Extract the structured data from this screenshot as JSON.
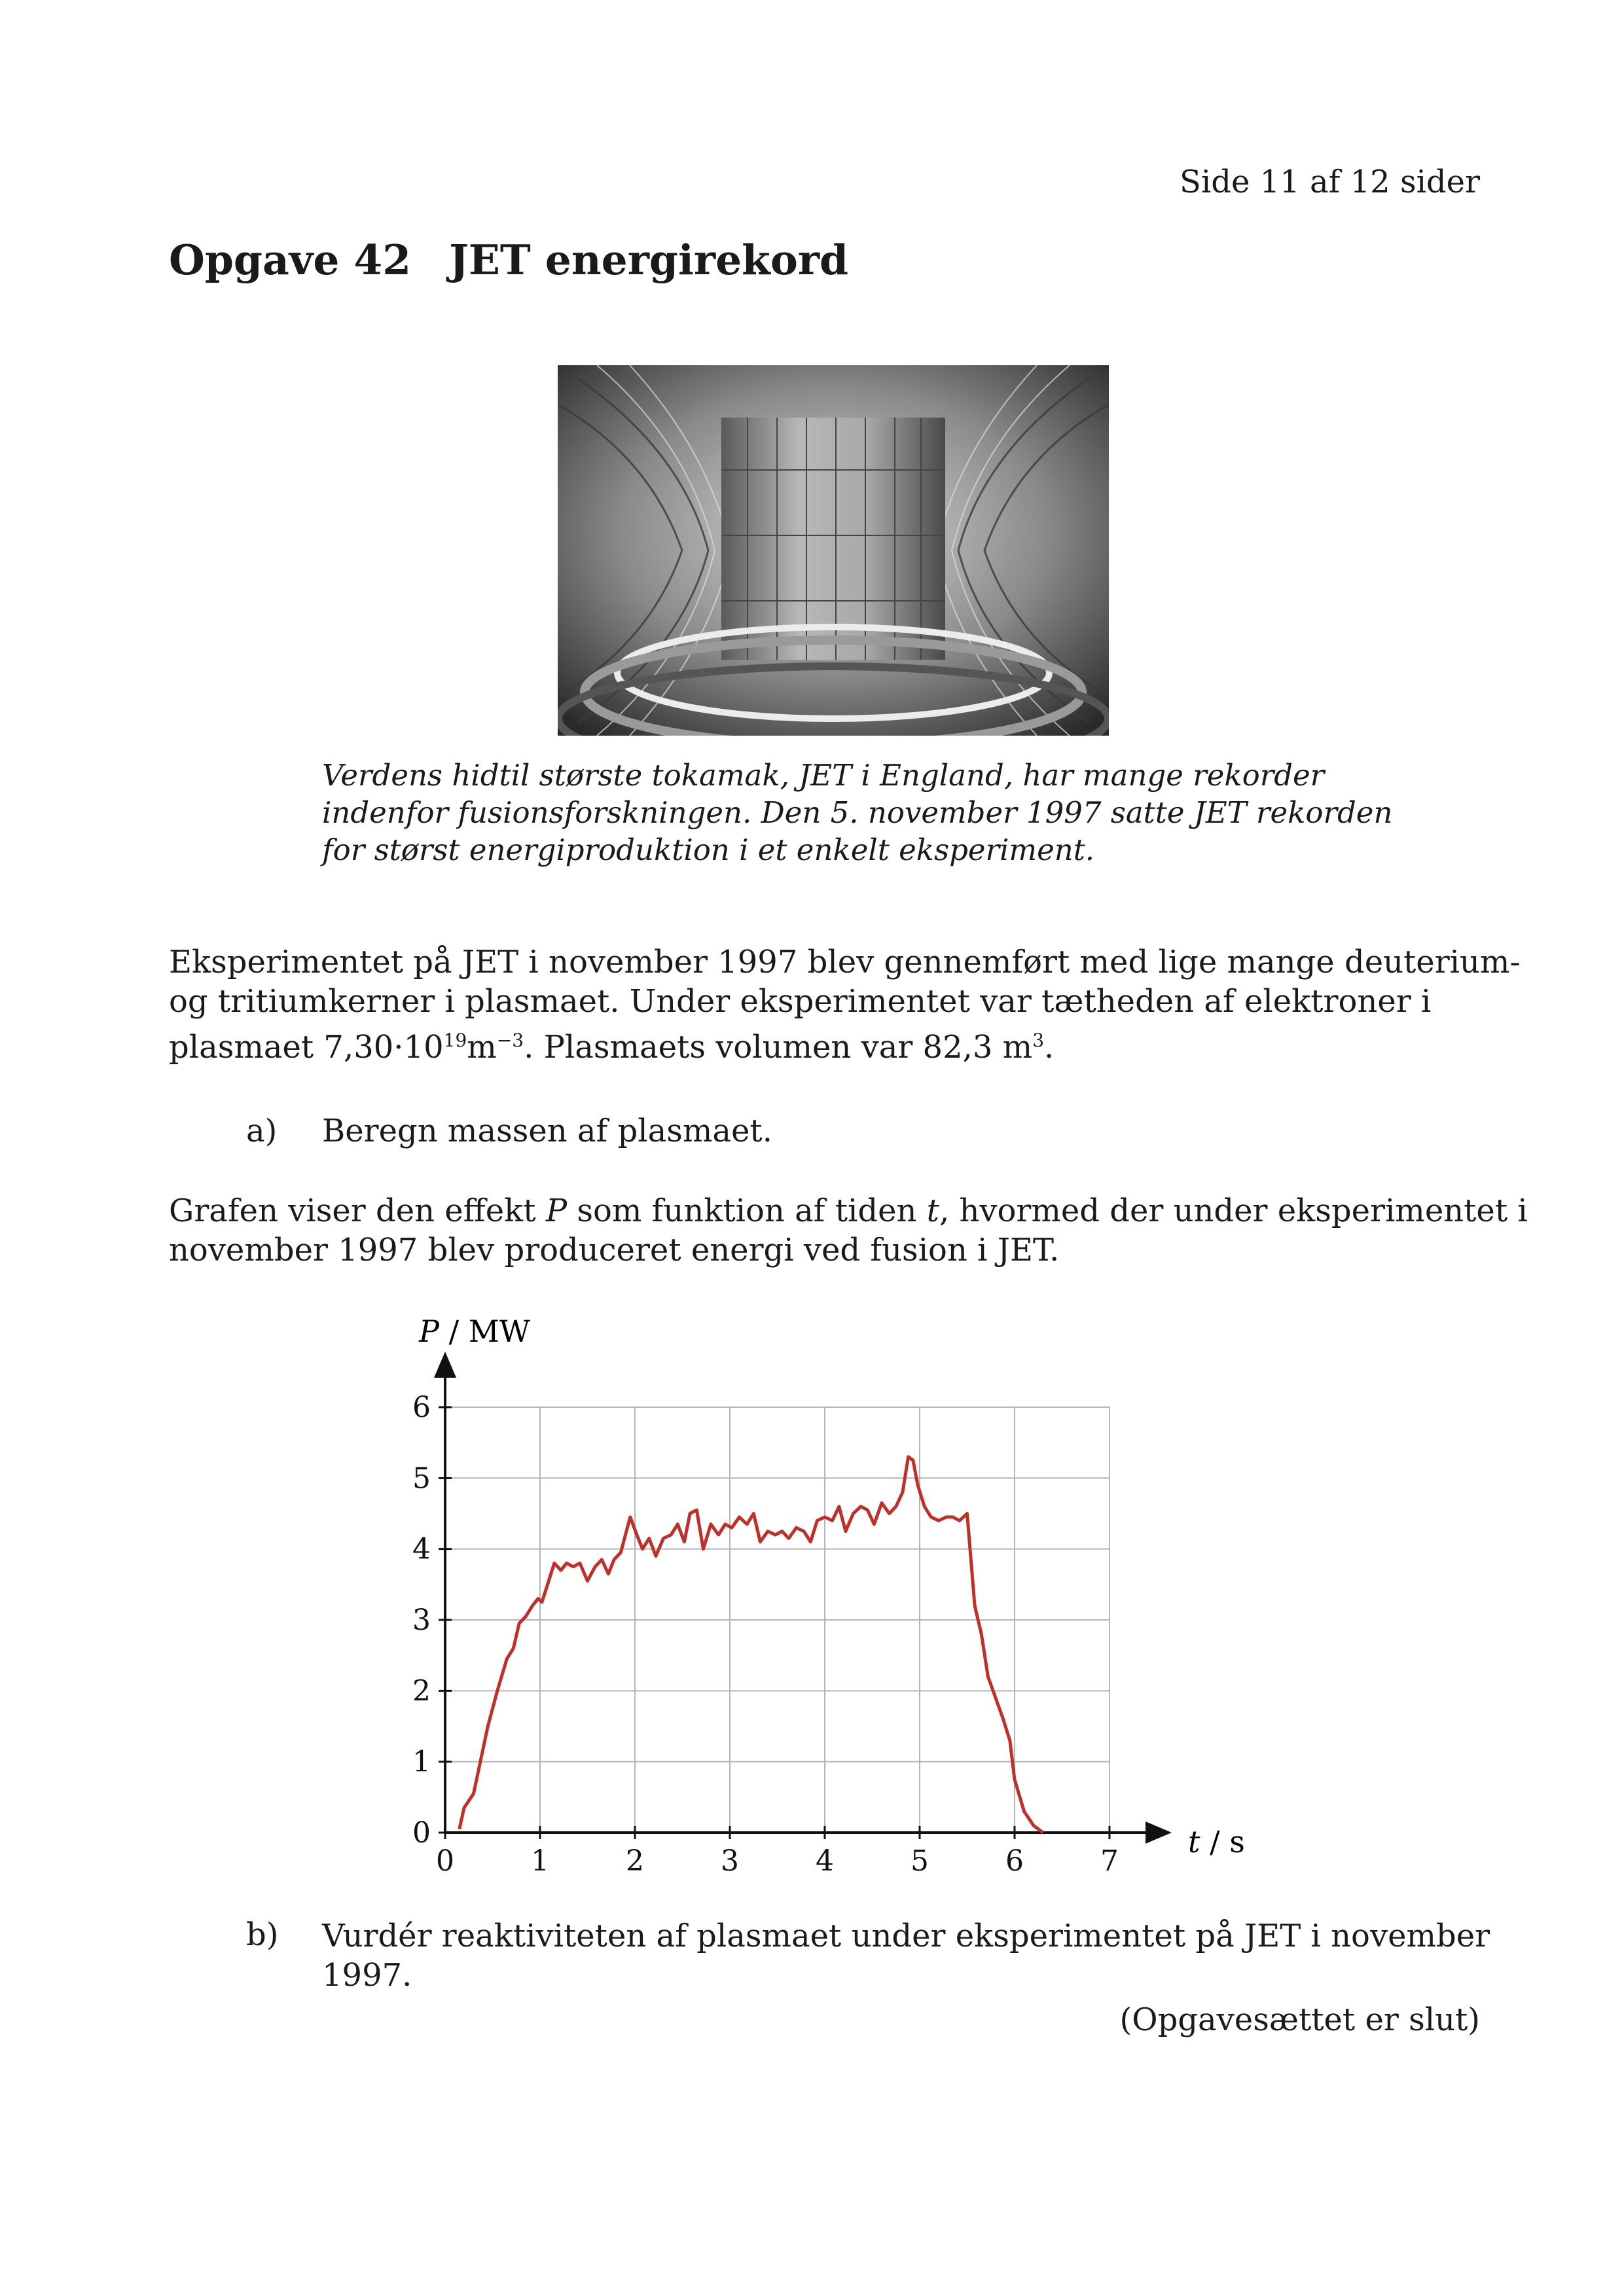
{
  "header": {
    "page_number": "Side 11 af 12 sider"
  },
  "title": {
    "number": "Opgave 42",
    "text": "JET energirekord"
  },
  "photo": {
    "icon": "tokamak-interior-photo"
  },
  "caption": {
    "lines": [
      "Verdens hidtil største tokamak, JET i England, har mange rekorder",
      "indenfor fusionsforskningen. Den 5. november 1997 satte JET  rekorden",
      "for størst energiproduktion i et enkelt eksperiment."
    ]
  },
  "intro": {
    "line1": "Eksperimentet på JET i november 1997 blev gennemført med lige mange deuterium-",
    "line2": "og tritiumkerner i plasmaet. Under eksperimentet var tætheden af elektroner i",
    "line3_a": "plasmaet ",
    "density_mantissa": "7,30",
    "density_base": "10",
    "density_exp": "19",
    "density_unit": "m",
    "density_unit_exp": "−3",
    "line3_b": ". Plasmaets volumen var ",
    "volume_value": "82,3 m",
    "volume_exp": "3",
    "line3_c": "."
  },
  "question_a": {
    "label": "a)",
    "text": "Beregn massen af plasmaet."
  },
  "graph_intro": {
    "l1_a": "Grafen viser den effekt ",
    "l1_p": "P",
    "l1_b": " som funktion af tiden ",
    "l1_t": "t",
    "l1_c": ", hvormed der under eksperimentet i",
    "line2": "november 1997 blev produceret energi ved fusion i JET."
  },
  "chart_data": {
    "type": "line",
    "ylabel_symbol": "P",
    "ylabel_unit": " / MW",
    "xlabel_symbol": "t",
    "xlabel_unit": " / s",
    "xlim": [
      0,
      7
    ],
    "ylim": [
      0,
      6
    ],
    "xticks": [
      "0",
      "1",
      "2",
      "3",
      "4",
      "5",
      "6",
      "7"
    ],
    "yticks": [
      "0",
      "1",
      "2",
      "3",
      "4",
      "5",
      "6"
    ],
    "grid": true,
    "line_color": "#c0302a",
    "series": [
      {
        "x": [
          0.15,
          0.2,
          0.3,
          0.45,
          0.55,
          0.65,
          0.72,
          0.78,
          0.85,
          0.92,
          0.98,
          1.02,
          1.08,
          1.15,
          1.22,
          1.28,
          1.35,
          1.42,
          1.5,
          1.58,
          1.65,
          1.72,
          1.78,
          1.85,
          1.9,
          1.95,
          2.02,
          2.08,
          2.15,
          2.22,
          2.3,
          2.38,
          2.45,
          2.52,
          2.58,
          2.65,
          2.72,
          2.8,
          2.88,
          2.95,
          3.02,
          3.1,
          3.18,
          3.25,
          3.32,
          3.4,
          3.48,
          3.55,
          3.62,
          3.7,
          3.78,
          3.85,
          3.92,
          4.0,
          4.08,
          4.15,
          4.22,
          4.3,
          4.38,
          4.45,
          4.52,
          4.6,
          4.68,
          4.75,
          4.82,
          4.88,
          4.93,
          4.98,
          5.05,
          5.12,
          5.2,
          5.28,
          5.35,
          5.42,
          5.5,
          5.58,
          5.65,
          5.72,
          5.8,
          5.88,
          5.95,
          6.0,
          6.1,
          6.2,
          6.3
        ],
        "values": [
          0.05,
          0.35,
          0.55,
          1.5,
          2.0,
          2.45,
          2.6,
          2.95,
          3.05,
          3.2,
          3.3,
          3.25,
          3.5,
          3.8,
          3.7,
          3.8,
          3.75,
          3.8,
          3.55,
          3.75,
          3.85,
          3.65,
          3.85,
          3.95,
          4.2,
          4.45,
          4.2,
          4.0,
          4.15,
          3.9,
          4.15,
          4.2,
          4.35,
          4.1,
          4.5,
          4.55,
          4.0,
          4.35,
          4.2,
          4.35,
          4.3,
          4.45,
          4.35,
          4.5,
          4.1,
          4.25,
          4.2,
          4.25,
          4.15,
          4.3,
          4.25,
          4.1,
          4.4,
          4.45,
          4.4,
          4.6,
          4.25,
          4.5,
          4.6,
          4.55,
          4.35,
          4.65,
          4.5,
          4.6,
          4.8,
          5.3,
          5.25,
          4.9,
          4.6,
          4.45,
          4.4,
          4.45,
          4.45,
          4.4,
          4.5,
          3.2,
          2.8,
          2.2,
          1.9,
          1.6,
          1.3,
          0.75,
          0.3,
          0.1,
          0.0
        ]
      }
    ]
  },
  "question_b": {
    "label": "b)",
    "line1": "Vurdér reaktiviteten af plasmaet under eksperimentet på JET i november",
    "line2": "1997."
  },
  "footer": {
    "end_note": "(Opgavesættet er slut)"
  }
}
